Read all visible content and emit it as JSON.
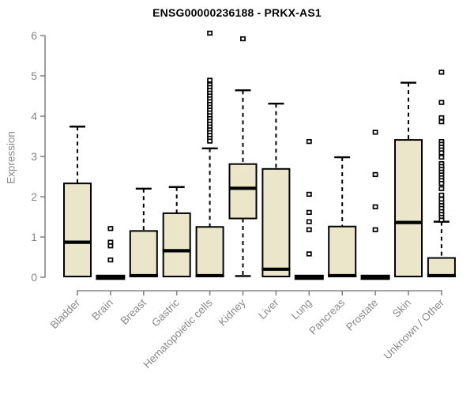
{
  "title": "ENSG00000236188 - PRKX-AS1",
  "colors": {
    "background": "#ffffff",
    "box_fill": "#EBE5C9",
    "box_stroke": "#000000",
    "median": "#000000",
    "whisker": "#000000",
    "outlier_fill": "#ffffff",
    "axis": "#858585",
    "tick_label": "#858585",
    "category_label": "#8a8a8a",
    "title_color": "#000000"
  },
  "chart_data": {
    "type": "boxplot",
    "title": "ENSG00000236188 - PRKX-AS1",
    "xlabel": "",
    "ylabel": "Expression",
    "ylim": [
      0,
      6
    ],
    "yticks": [
      0,
      1,
      2,
      3,
      4,
      5,
      6
    ],
    "grid": false,
    "legend": "none",
    "categories": [
      "Bladder",
      "Brain",
      "Breast",
      "Gastric",
      "Hematopoietic cells",
      "Kidney",
      "Liver",
      "Lung",
      "Pancreas",
      "Prostate",
      "Skin",
      "Unknown / Other"
    ],
    "boxes": [
      {
        "category": "Bladder",
        "low": 0.02,
        "q1": 0.02,
        "median": 0.87,
        "q3": 2.33,
        "high": 3.74,
        "outliers": []
      },
      {
        "category": "Brain",
        "low": 0.0,
        "q1": 0.0,
        "median": 0.0,
        "q3": 0.0,
        "high": 0.0,
        "outliers": [
          1.21,
          0.87,
          0.78,
          0.43
        ]
      },
      {
        "category": "Breast",
        "low": 0.02,
        "q1": 0.02,
        "median": 0.04,
        "q3": 1.15,
        "high": 2.2,
        "outliers": []
      },
      {
        "category": "Gastric",
        "low": 0.02,
        "q1": 0.02,
        "median": 0.66,
        "q3": 1.59,
        "high": 2.24,
        "outliers": []
      },
      {
        "category": "Hematopoietic cells",
        "low": 0.02,
        "q1": 0.02,
        "median": 0.04,
        "q3": 1.25,
        "high": 3.2,
        "outliers": [
          6.06,
          4.89,
          4.78,
          4.71,
          4.64,
          4.57,
          4.5,
          4.43,
          4.36,
          4.29,
          4.22,
          4.15,
          4.08,
          4.01,
          3.94,
          3.87,
          3.8,
          3.73,
          3.66,
          3.59,
          3.52,
          3.45,
          3.38
        ]
      },
      {
        "category": "Kidney",
        "low": 0.03,
        "q1": 1.46,
        "median": 2.21,
        "q3": 2.81,
        "high": 4.64,
        "outliers": [
          5.92
        ]
      },
      {
        "category": "Liver",
        "low": 0.02,
        "q1": 0.02,
        "median": 0.2,
        "q3": 2.69,
        "high": 4.31,
        "outliers": []
      },
      {
        "category": "Lung",
        "low": 0.0,
        "q1": 0.0,
        "median": 0.0,
        "q3": 0.0,
        "high": 0.0,
        "outliers": [
          3.37,
          2.06,
          1.61,
          1.38,
          1.18,
          0.58
        ]
      },
      {
        "category": "Pancreas",
        "low": 0.02,
        "q1": 0.02,
        "median": 0.04,
        "q3": 1.26,
        "high": 2.98,
        "outliers": []
      },
      {
        "category": "Prostate",
        "low": 0.0,
        "q1": 0.0,
        "median": 0.0,
        "q3": 0.0,
        "high": 0.0,
        "outliers": [
          3.6,
          2.55,
          1.75,
          1.18
        ]
      },
      {
        "category": "Skin",
        "low": 0.02,
        "q1": 0.02,
        "median": 1.36,
        "q3": 3.41,
        "high": 4.83,
        "outliers": []
      },
      {
        "category": "Unknown / Other",
        "low": 0.02,
        "q1": 0.02,
        "median": 0.04,
        "q3": 0.48,
        "high": 1.38,
        "outliers": [
          5.09,
          4.34,
          3.96,
          3.86,
          3.37,
          3.3,
          3.23,
          3.16,
          3.09,
          2.98,
          2.82,
          2.75,
          2.68,
          2.61,
          2.54,
          2.47,
          2.4,
          2.33,
          2.2,
          2.04,
          1.94,
          1.85,
          1.78,
          1.71,
          1.63,
          1.56,
          1.49,
          1.42
        ]
      }
    ]
  }
}
